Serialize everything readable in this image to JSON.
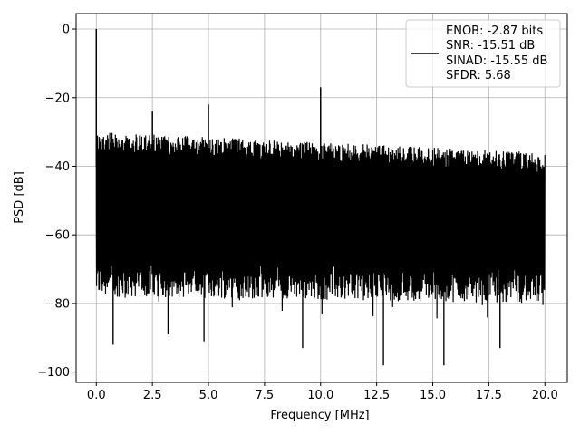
{
  "chart_data": {
    "type": "line",
    "title": "",
    "xlabel": "Frequency [MHz]",
    "ylabel": "PSD [dB]",
    "xlim": [
      -0.9,
      21.0
    ],
    "ylim": [
      -103,
      4.5
    ],
    "xticks": [
      0.0,
      2.5,
      5.0,
      7.5,
      10.0,
      12.5,
      15.0,
      17.5,
      20.0
    ],
    "xtick_labels": [
      "0.0",
      "2.5",
      "5.0",
      "7.5",
      "10.0",
      "12.5",
      "15.0",
      "17.5",
      "20.0"
    ],
    "yticks": [
      0,
      -20,
      -40,
      -60,
      -80,
      -100
    ],
    "ytick_labels": [
      "0",
      "−20",
      "−40",
      "−60",
      "−80",
      "−100"
    ],
    "grid": true,
    "legend_position": "top-right",
    "series": [
      {
        "name": "ENOB: -2.87 bits\nSNR: -15.51 dB\nSINAD: -15.55 dB\nSFDR: 5.68",
        "color": "#000000",
        "noise_floor": {
          "x_range": [
            0.0,
            20.0
          ],
          "upper_envelope": [
            -30,
            -36
          ],
          "lower_envelope": [
            -78,
            -80
          ]
        },
        "peaks": [
          {
            "x": 0.0,
            "y": 0
          },
          {
            "x": 2.5,
            "y": -24
          },
          {
            "x": 5.0,
            "y": -22
          },
          {
            "x": 10.0,
            "y": -17
          }
        ],
        "dips": [
          {
            "x": 0.75,
            "y": -92
          },
          {
            "x": 3.2,
            "y": -89
          },
          {
            "x": 4.8,
            "y": -91
          },
          {
            "x": 9.2,
            "y": -93
          },
          {
            "x": 12.8,
            "y": -98
          },
          {
            "x": 15.5,
            "y": -98
          },
          {
            "x": 18.0,
            "y": -93
          }
        ]
      }
    ]
  },
  "legend": {
    "lines": [
      "ENOB: -2.87 bits",
      "SNR: -15.51 dB",
      "SINAD: -15.55 dB",
      "SFDR: 5.68"
    ]
  }
}
